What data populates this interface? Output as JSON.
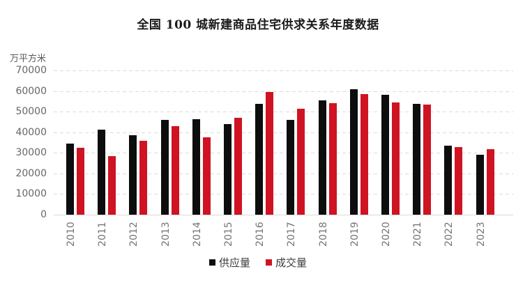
{
  "chart_data": {
    "type": "bar",
    "title": "全国 100 城新建商品住宅供求关系年度数据",
    "ylabel": "万平方米",
    "xlabel": "",
    "categories": [
      "2010",
      "2011",
      "2012",
      "2013",
      "2014",
      "2015",
      "2016",
      "2017",
      "2018",
      "2019",
      "2020",
      "2021",
      "2022",
      "2023"
    ],
    "series": [
      {
        "name": "供应量",
        "color": "#0d0d0d",
        "values": [
          34500,
          41200,
          38600,
          46100,
          46300,
          44100,
          53700,
          46000,
          55400,
          61000,
          58000,
          53800,
          33400,
          29200
        ]
      },
      {
        "name": "成交量",
        "color": "#cf1322",
        "values": [
          32500,
          28300,
          35700,
          43000,
          37500,
          46900,
          59600,
          51300,
          54100,
          58500,
          54600,
          53400,
          32800,
          31700
        ]
      }
    ],
    "ylim": [
      0,
      70000
    ],
    "ytick_interval": 10000,
    "yticks": [
      0,
      10000,
      20000,
      30000,
      40000,
      50000,
      60000,
      70000
    ],
    "grid": "horizontal-dashed",
    "legend_position": "bottom",
    "x_label_rotation": -90
  }
}
